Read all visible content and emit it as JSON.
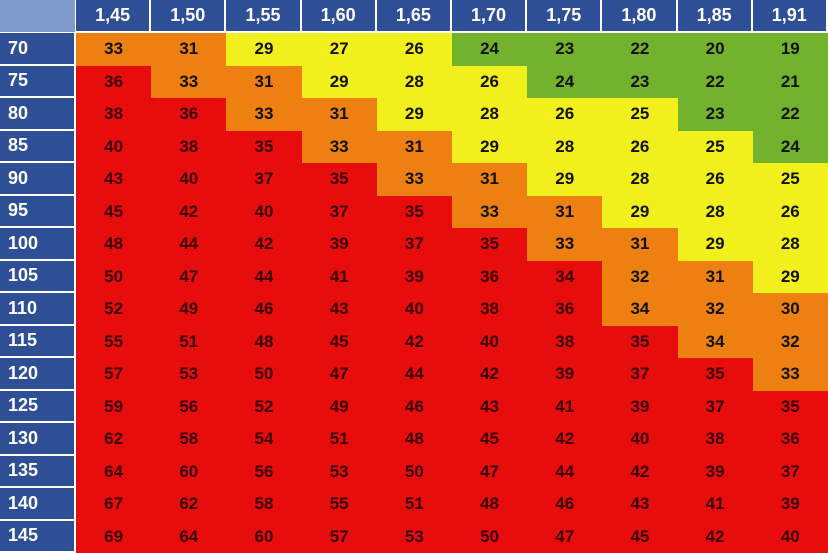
{
  "table": {
    "column_headers": [
      "1,45",
      "1,50",
      "1,55",
      "1,60",
      "1,65",
      "1,70",
      "1,75",
      "1,80",
      "1,85",
      "1,91"
    ],
    "rows": [
      {
        "label": "70",
        "values": [
          "33",
          "31",
          "29",
          "27",
          "26",
          "24",
          "23",
          "22",
          "20",
          "19"
        ],
        "bands": [
          "orange",
          "orange",
          "yellow",
          "yellow",
          "yellow",
          "green",
          "green",
          "green",
          "green",
          "green"
        ]
      },
      {
        "label": "75",
        "values": [
          "36",
          "33",
          "31",
          "29",
          "28",
          "26",
          "24",
          "23",
          "22",
          "21"
        ],
        "bands": [
          "red",
          "orange",
          "orange",
          "yellow",
          "yellow",
          "yellow",
          "green",
          "green",
          "green",
          "green"
        ]
      },
      {
        "label": "80",
        "values": [
          "38",
          "36",
          "33",
          "31",
          "29",
          "28",
          "26",
          "25",
          "23",
          "22"
        ],
        "bands": [
          "red",
          "red",
          "orange",
          "orange",
          "yellow",
          "yellow",
          "yellow",
          "yellow",
          "green",
          "green"
        ]
      },
      {
        "label": "85",
        "values": [
          "40",
          "38",
          "35",
          "33",
          "31",
          "29",
          "28",
          "26",
          "25",
          "24"
        ],
        "bands": [
          "red",
          "red",
          "red",
          "orange",
          "orange",
          "yellow",
          "yellow",
          "yellow",
          "yellow",
          "green"
        ]
      },
      {
        "label": "90",
        "values": [
          "43",
          "40",
          "37",
          "35",
          "33",
          "31",
          "29",
          "28",
          "26",
          "25"
        ],
        "bands": [
          "red",
          "red",
          "red",
          "red",
          "orange",
          "orange",
          "yellow",
          "yellow",
          "yellow",
          "yellow"
        ]
      },
      {
        "label": "95",
        "values": [
          "45",
          "42",
          "40",
          "37",
          "35",
          "33",
          "31",
          "29",
          "28",
          "26"
        ],
        "bands": [
          "red",
          "red",
          "red",
          "red",
          "red",
          "orange",
          "orange",
          "yellow",
          "yellow",
          "yellow"
        ]
      },
      {
        "label": "100",
        "values": [
          "48",
          "44",
          "42",
          "39",
          "37",
          "35",
          "33",
          "31",
          "29",
          "28"
        ],
        "bands": [
          "red",
          "red",
          "red",
          "red",
          "red",
          "red",
          "orange",
          "orange",
          "yellow",
          "yellow"
        ]
      },
      {
        "label": "105",
        "values": [
          "50",
          "47",
          "44",
          "41",
          "39",
          "36",
          "34",
          "32",
          "31",
          "29"
        ],
        "bands": [
          "red",
          "red",
          "red",
          "red",
          "red",
          "red",
          "red",
          "orange",
          "orange",
          "yellow"
        ]
      },
      {
        "label": "110",
        "values": [
          "52",
          "49",
          "46",
          "43",
          "40",
          "38",
          "36",
          "34",
          "32",
          "30"
        ],
        "bands": [
          "red",
          "red",
          "red",
          "red",
          "red",
          "red",
          "red",
          "orange",
          "orange",
          "orange"
        ]
      },
      {
        "label": "115",
        "values": [
          "55",
          "51",
          "48",
          "45",
          "42",
          "40",
          "38",
          "35",
          "34",
          "32"
        ],
        "bands": [
          "red",
          "red",
          "red",
          "red",
          "red",
          "red",
          "red",
          "red",
          "orange",
          "orange"
        ]
      },
      {
        "label": "120",
        "values": [
          "57",
          "53",
          "50",
          "47",
          "44",
          "42",
          "39",
          "37",
          "35",
          "33"
        ],
        "bands": [
          "red",
          "red",
          "red",
          "red",
          "red",
          "red",
          "red",
          "red",
          "red",
          "orange"
        ]
      },
      {
        "label": "125",
        "values": [
          "59",
          "56",
          "52",
          "49",
          "46",
          "43",
          "41",
          "39",
          "37",
          "35"
        ],
        "bands": [
          "red",
          "red",
          "red",
          "red",
          "red",
          "red",
          "red",
          "red",
          "red",
          "red"
        ]
      },
      {
        "label": "130",
        "values": [
          "62",
          "58",
          "54",
          "51",
          "48",
          "45",
          "42",
          "40",
          "38",
          "36"
        ],
        "bands": [
          "red",
          "red",
          "red",
          "red",
          "red",
          "red",
          "red",
          "red",
          "red",
          "red"
        ]
      },
      {
        "label": "135",
        "values": [
          "64",
          "60",
          "56",
          "53",
          "50",
          "47",
          "44",
          "42",
          "39",
          "37"
        ],
        "bands": [
          "red",
          "red",
          "red",
          "red",
          "red",
          "red",
          "red",
          "red",
          "red",
          "red"
        ]
      },
      {
        "label": "140",
        "values": [
          "67",
          "62",
          "58",
          "55",
          "51",
          "48",
          "46",
          "43",
          "41",
          "39"
        ],
        "bands": [
          "red",
          "red",
          "red",
          "red",
          "red",
          "red",
          "red",
          "red",
          "red",
          "red"
        ]
      },
      {
        "label": "145",
        "values": [
          "69",
          "64",
          "60",
          "57",
          "53",
          "50",
          "47",
          "45",
          "42",
          "40"
        ],
        "bands": [
          "red",
          "red",
          "red",
          "red",
          "red",
          "red",
          "red",
          "red",
          "red",
          "red"
        ]
      }
    ]
  },
  "colors": {
    "header_bg": "#2e4f96",
    "green": "#72b22c",
    "yellow": "#f2f01c",
    "orange": "#ee8012",
    "red": "#e80d0d"
  }
}
